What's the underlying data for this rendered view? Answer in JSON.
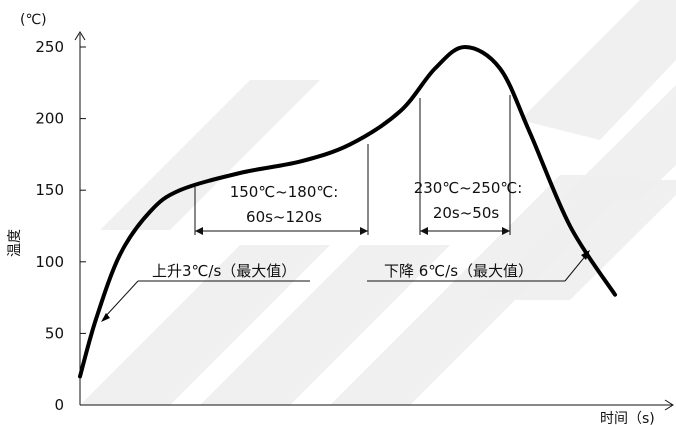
{
  "chart_data": {
    "type": "line",
    "title": "",
    "ylabel": "温度",
    "yunit": "(℃)",
    "xlabel": "时间（s)",
    "ylim": [
      0,
      250
    ],
    "yticks": [
      0,
      50,
      100,
      150,
      200,
      250
    ],
    "ytick_labels": [
      "0",
      "50",
      "100",
      "150",
      "200",
      "250"
    ],
    "series": [
      {
        "values": [
          {
            "x": 0,
            "y": 20
          },
          {
            "x": 16,
            "y": 60
          },
          {
            "x": 40,
            "y": 105
          },
          {
            "x": 70,
            "y": 135
          },
          {
            "x": 100,
            "y": 150
          },
          {
            "x": 160,
            "y": 162
          },
          {
            "x": 220,
            "y": 170
          },
          {
            "x": 270,
            "y": 182
          },
          {
            "x": 320,
            "y": 205
          },
          {
            "x": 355,
            "y": 235
          },
          {
            "x": 385,
            "y": 250
          },
          {
            "x": 420,
            "y": 235
          },
          {
            "x": 450,
            "y": 190
          },
          {
            "x": 490,
            "y": 125
          },
          {
            "x": 535,
            "y": 77
          }
        ]
      }
    ],
    "annotations": [
      {
        "id": "soak",
        "line1": "150℃~180℃:",
        "line2": "60s~120s"
      },
      {
        "id": "reflow",
        "line1": "230℃~250℃:",
        "line2": "20s~50s"
      },
      {
        "id": "ramp_up",
        "text": "上升3℃/s（最大值）"
      },
      {
        "id": "ramp_down",
        "text": "下降 6℃/s（最大值）"
      }
    ],
    "watermark_color": "#eeeeee",
    "line_color": "#000000",
    "grid": false
  }
}
